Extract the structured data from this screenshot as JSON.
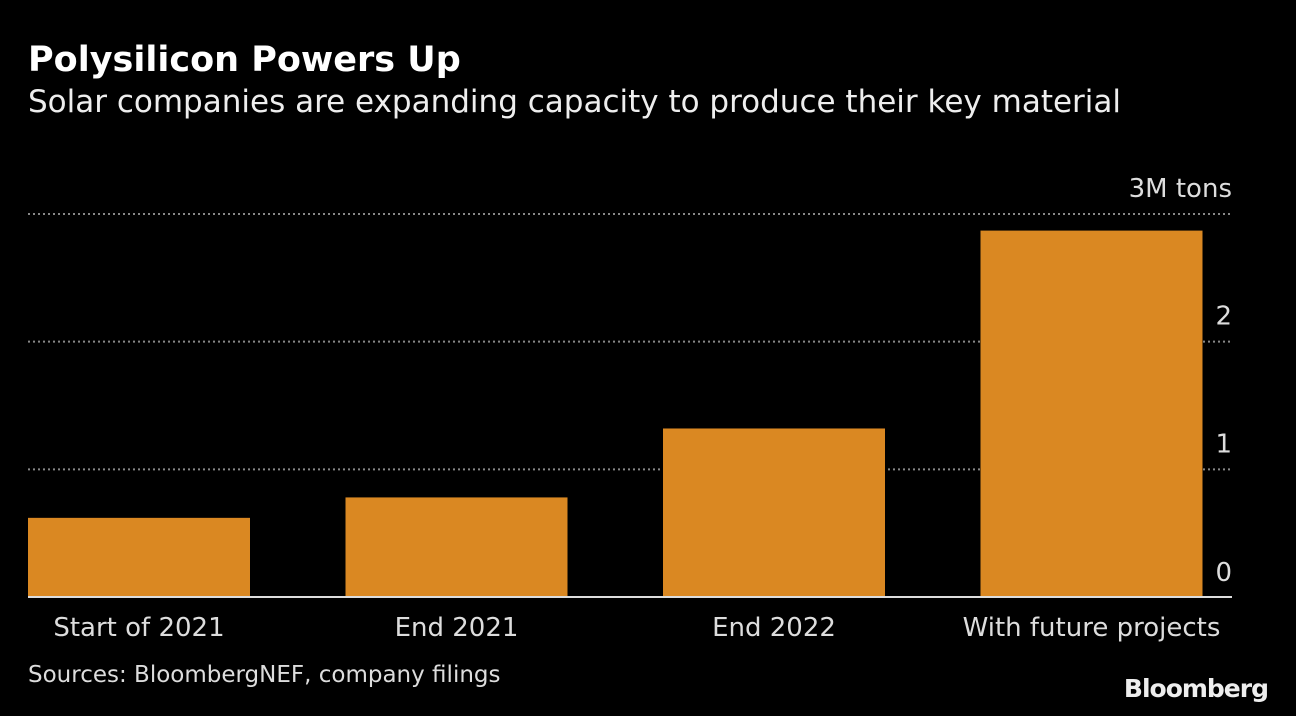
{
  "chart_data": {
    "type": "bar",
    "title": "Polysilicon Powers Up",
    "subtitle": "Solar companies are expanding capacity to produce their key material",
    "categories": [
      "Start of 2021",
      "End 2021",
      "End 2022",
      "With future projects"
    ],
    "values": [
      0.62,
      0.78,
      1.32,
      2.87
    ],
    "ylim": [
      0,
      3
    ],
    "yticks": [
      0,
      1,
      2,
      3
    ],
    "ytick_labels": [
      "0",
      "1",
      "2",
      "3M tons"
    ],
    "xlabel": "",
    "ylabel": "",
    "grid": true,
    "bar_color": "#da8822",
    "source": "Sources: BloombergNEF, company filings",
    "logo": "Bloomberg"
  }
}
